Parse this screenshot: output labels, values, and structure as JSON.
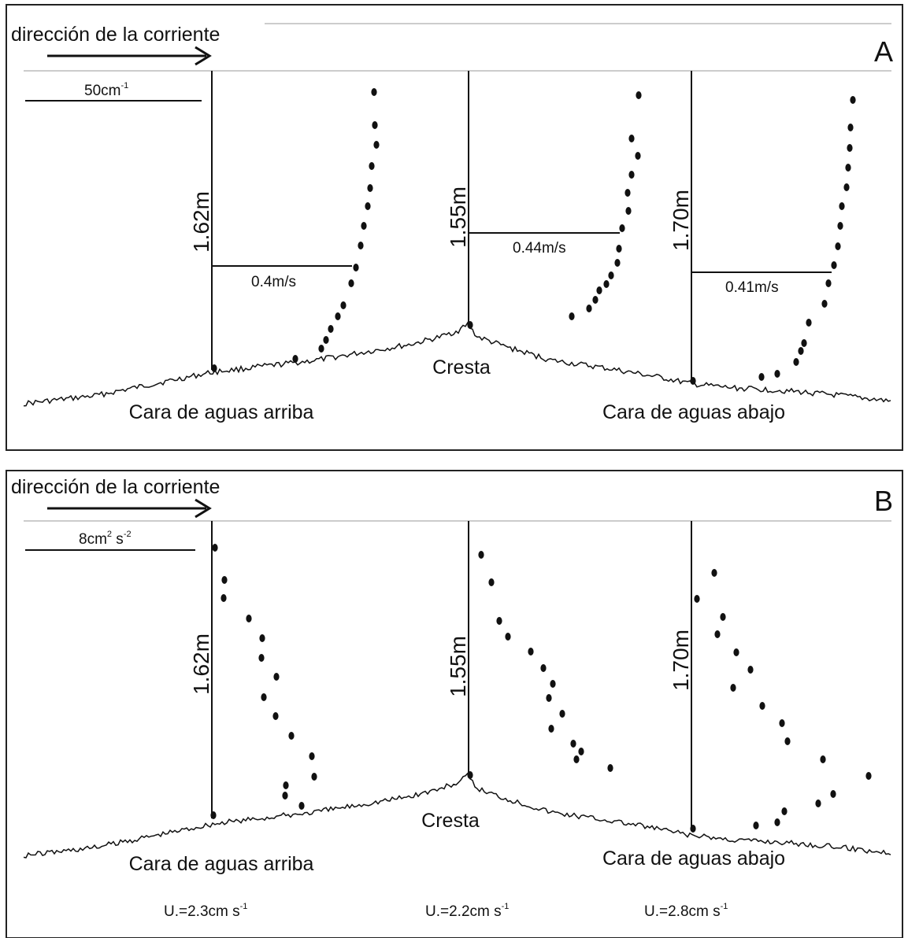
{
  "panels": [
    {
      "letter": "A",
      "direction_label": "dirección de la corriente",
      "scale_label": "50cm",
      "scale_sup": "-1",
      "profiles": [
        {
          "height_label": "1.62m",
          "velocity_label": "0.4m/s"
        },
        {
          "height_label": "1.55m",
          "velocity_label": "0.44m/s"
        },
        {
          "height_label": "1.70m",
          "velocity_label": "0.41m/s"
        }
      ],
      "crest_label": "Cresta",
      "upstream_label": "Cara de aguas arriba",
      "downstream_label": "Cara de aguas abajo"
    },
    {
      "letter": "B",
      "direction_label": "dirección de la corriente",
      "scale_label": "8cm",
      "scale_sup1": "2",
      "scale_mid": " s",
      "scale_sup2": "-2",
      "profiles": [
        {
          "height_label": "1.62m",
          "ustar_label": "U.=2.3cm s",
          "ustar_sup": "-1"
        },
        {
          "height_label": "1.55m",
          "ustar_label": "U.=2.2cm s",
          "ustar_sup": "-1"
        },
        {
          "height_label": "1.70m",
          "ustar_label": "U.=2.8cm s",
          "ustar_sup": "-1"
        }
      ],
      "crest_label": "Cresta",
      "upstream_label": "Cara de aguas arriba",
      "downstream_label": "Cara de aguas abajo"
    }
  ]
}
